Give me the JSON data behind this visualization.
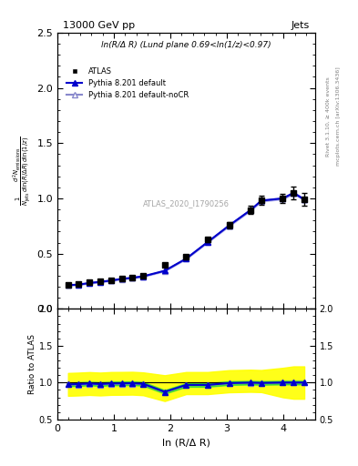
{
  "title_left": "13000 GeV pp",
  "title_right": "Jets",
  "annotation": "ln(R/Δ R) (Lund plane 0.69<ln(1/z)<0.97)",
  "watermark": "ATLAS_2020_I1790256",
  "rivet_label": "Rivet 3.1.10, ≥ 400k events",
  "arxiv_label": "mcplots.cern.ch [arXiv:1306.3436]",
  "ylabel_main": "1/N_{jets} dln(R/ΔR) dln(1/z)\nd²N_{emissions}",
  "ylabel_ratio": "Ratio to ATLAS",
  "xlabel": "ln (R/Δ R)",
  "atlas_x": [
    0.19,
    0.38,
    0.57,
    0.76,
    0.95,
    1.14,
    1.33,
    1.52,
    1.9,
    2.28,
    2.66,
    3.04,
    3.42,
    3.61,
    3.99,
    4.18,
    4.37
  ],
  "atlas_y": [
    0.22,
    0.225,
    0.238,
    0.25,
    0.26,
    0.275,
    0.285,
    0.3,
    0.395,
    0.47,
    0.625,
    0.76,
    0.895,
    0.985,
    1.0,
    1.05,
    0.99
  ],
  "atlas_yerr": [
    0.012,
    0.01,
    0.01,
    0.01,
    0.01,
    0.01,
    0.01,
    0.01,
    0.015,
    0.018,
    0.022,
    0.028,
    0.035,
    0.04,
    0.045,
    0.055,
    0.06
  ],
  "py_default_x": [
    0.19,
    0.38,
    0.57,
    0.76,
    0.95,
    1.14,
    1.33,
    1.52,
    1.9,
    2.28,
    2.66,
    3.04,
    3.42,
    3.61,
    3.99,
    4.18,
    4.37
  ],
  "py_default_y": [
    0.215,
    0.22,
    0.235,
    0.245,
    0.257,
    0.272,
    0.282,
    0.295,
    0.345,
    0.455,
    0.605,
    0.755,
    0.895,
    0.98,
    1.0,
    1.05,
    0.99
  ],
  "py_default_band_lo": [
    0.21,
    0.215,
    0.23,
    0.24,
    0.252,
    0.267,
    0.277,
    0.29,
    0.34,
    0.45,
    0.6,
    0.748,
    0.888,
    0.972,
    0.992,
    1.04,
    0.982
  ],
  "py_default_band_hi": [
    0.22,
    0.225,
    0.24,
    0.25,
    0.262,
    0.277,
    0.287,
    0.3,
    0.35,
    0.46,
    0.61,
    0.762,
    0.902,
    0.988,
    1.008,
    1.06,
    0.998
  ],
  "py_nocr_x": [
    0.19,
    0.38,
    0.57,
    0.76,
    0.95,
    1.14,
    1.33,
    1.52,
    1.9,
    2.28,
    2.66,
    3.04,
    3.42,
    3.61,
    3.99,
    4.18,
    4.37
  ],
  "py_nocr_y": [
    0.215,
    0.218,
    0.233,
    0.243,
    0.255,
    0.27,
    0.28,
    0.293,
    0.343,
    0.453,
    0.603,
    0.753,
    0.893,
    0.978,
    0.998,
    1.048,
    0.988
  ],
  "ratio_default_x": [
    0.19,
    0.38,
    0.57,
    0.76,
    0.95,
    1.14,
    1.33,
    1.52,
    1.9,
    2.28,
    2.66,
    3.04,
    3.42,
    3.61,
    3.99,
    4.18,
    4.37
  ],
  "ratio_default_y": [
    0.975,
    0.98,
    0.987,
    0.98,
    0.988,
    0.989,
    0.991,
    0.983,
    0.874,
    0.968,
    0.968,
    0.993,
    0.999,
    0.995,
    1.0,
    1.0,
    1.0
  ],
  "ratio_default_band_lo_green": [
    0.95,
    0.955,
    0.962,
    0.955,
    0.963,
    0.964,
    0.966,
    0.958,
    0.849,
    0.943,
    0.943,
    0.968,
    0.974,
    0.97,
    0.975,
    0.975,
    0.975
  ],
  "ratio_default_band_hi_green": [
    1.0,
    1.005,
    1.012,
    1.005,
    1.013,
    1.014,
    1.016,
    1.008,
    0.899,
    0.993,
    0.993,
    1.018,
    1.024,
    1.02,
    1.025,
    1.025,
    1.025
  ],
  "ratio_default_band_lo_yellow": [
    0.82,
    0.825,
    0.832,
    0.825,
    0.833,
    0.834,
    0.836,
    0.828,
    0.749,
    0.843,
    0.843,
    0.868,
    0.874,
    0.87,
    0.8,
    0.78,
    0.78
  ],
  "ratio_default_band_hi_yellow": [
    1.13,
    1.135,
    1.142,
    1.135,
    1.143,
    1.144,
    1.146,
    1.138,
    1.099,
    1.143,
    1.143,
    1.168,
    1.174,
    1.17,
    1.2,
    1.22,
    1.22
  ],
  "ratio_nocr_x": [
    0.19,
    0.38,
    0.57,
    0.76,
    0.95,
    1.14,
    1.33,
    1.52,
    1.9,
    2.28,
    2.66,
    3.04,
    3.42,
    3.61,
    3.99,
    4.18,
    4.37
  ],
  "ratio_nocr_y": [
    0.975,
    0.969,
    0.979,
    0.972,
    0.981,
    0.982,
    0.984,
    0.977,
    0.868,
    0.964,
    0.965,
    0.991,
    0.997,
    0.993,
    0.998,
    1.0,
    0.998
  ],
  "main_ylim": [
    0.0,
    2.5
  ],
  "main_yticks": [
    0.0,
    0.5,
    1.0,
    1.5,
    2.0,
    2.5
  ],
  "ratio_ylim": [
    0.5,
    2.0
  ],
  "ratio_yticks": [
    0.5,
    1.0,
    1.5,
    2.0
  ],
  "xlim": [
    0.0,
    4.56
  ],
  "color_atlas": "#000000",
  "color_py_default": "#0000cc",
  "color_py_nocr": "#8888cc",
  "color_green_band": "#00cc44",
  "color_yellow_band": "#ffff00",
  "bg_color": "#ffffff"
}
